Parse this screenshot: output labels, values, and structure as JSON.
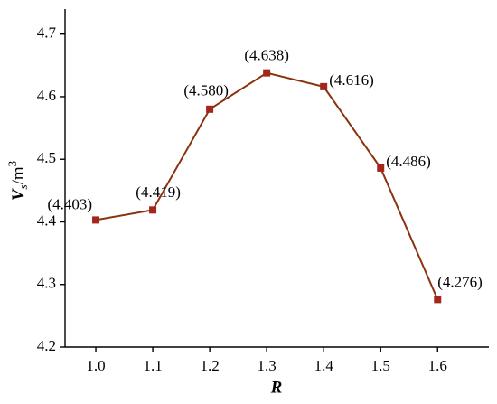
{
  "chart_data": {
    "type": "line",
    "x_label": "R",
    "y_label": [
      "V",
      "s",
      "/m",
      "3"
    ],
    "x": [
      {
        "value": 1,
        "label": "1.0"
      },
      1.1,
      1.2,
      1.3,
      1.4,
      1.5,
      1.6
    ],
    "series": [
      {
        "color": "#8b3210",
        "marker_color": "#a3261a",
        "values": [
          4.403,
          4.419,
          4.58,
          4.638,
          4.616,
          4.486,
          4.276
        ],
        "value_labels": [
          "(4.403)",
          "(4.419)",
          "(4.580)",
          "(4.638)",
          "(4.616)",
          "(4.486)",
          "(4.276)"
        ]
      }
    ],
    "xlim": [
      0.946,
      1.69
    ],
    "xticks": [
      {
        "value": 1,
        "label": "1.0"
      },
      1.1,
      1.2,
      1.3,
      1.4,
      1.5,
      1.6
    ],
    "ylim": [
      4.2,
      4.74
    ],
    "yticks": [
      4.2,
      4.3,
      4.4,
      4.5,
      4.6,
      4.7
    ],
    "grid": false
  }
}
